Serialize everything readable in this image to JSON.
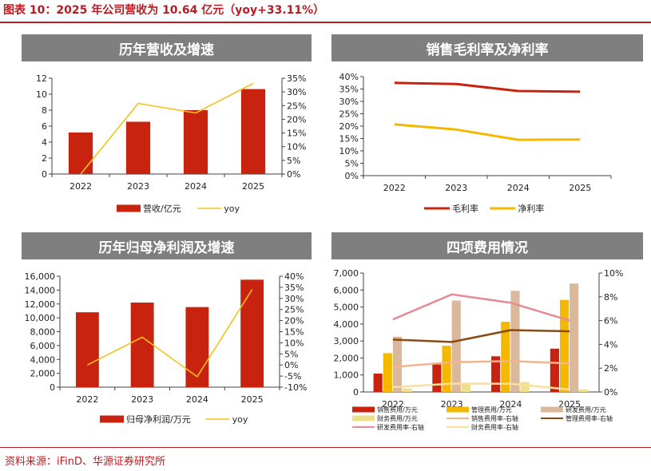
{
  "figure": {
    "title": "图表 10：2025 年公司营收为 10.64 亿元（yoy+33.11%）",
    "source": "资料来源：iFinD、华源证券研究所"
  },
  "panels": [
    {
      "title": "历年营收及增速"
    },
    {
      "title": "销售毛利率及净利率"
    },
    {
      "title": "历年归母净利润及增速"
    },
    {
      "title": "四项费用情况"
    }
  ],
  "chart_data": [
    {
      "type": "bar",
      "categories": [
        "2022",
        "2023",
        "2024",
        "2025"
      ],
      "series": [
        {
          "name": "营收/亿元",
          "type": "bar",
          "axis": "left",
          "color": "#c8230e",
          "values": [
            5.2,
            6.55,
            8.0,
            10.64
          ]
        },
        {
          "name": "yoy",
          "type": "line",
          "axis": "right",
          "color": "#f2c21b",
          "values": [
            0.0,
            25.8,
            22.3,
            33.11
          ]
        }
      ],
      "ylim": [
        0,
        12
      ],
      "yticks": [
        0,
        2,
        4,
        6,
        8,
        10,
        12
      ],
      "y2lim": [
        0,
        35
      ],
      "y2ticks": [
        0,
        5,
        10,
        15,
        20,
        25,
        30,
        35
      ],
      "y2suffix": "%",
      "legend": "bottom"
    },
    {
      "type": "line",
      "categories": [
        "2022",
        "2023",
        "2024",
        "2025"
      ],
      "series": [
        {
          "name": "毛利率",
          "color": "#c8230e",
          "values": [
            37.5,
            37.0,
            34.2,
            33.9
          ]
        },
        {
          "name": "净利率",
          "color": "#f5b800",
          "values": [
            20.7,
            18.6,
            14.5,
            14.6
          ]
        }
      ],
      "ylim": [
        0,
        40
      ],
      "yticks": [
        0,
        5,
        10,
        15,
        20,
        25,
        30,
        35,
        40
      ],
      "ysuffix": "%",
      "legend": "bottom"
    },
    {
      "type": "bar",
      "categories": [
        "2022",
        "2023",
        "2024",
        "2025"
      ],
      "series": [
        {
          "name": "归母净利润/万元",
          "type": "bar",
          "axis": "left",
          "color": "#c8230e",
          "values": [
            10800,
            12200,
            11550,
            15500
          ]
        },
        {
          "name": "yoy",
          "type": "line",
          "axis": "right",
          "color": "#f2c21b",
          "values": [
            0,
            12.5,
            -5.3,
            34.0
          ]
        }
      ],
      "ylim": [
        0,
        16000
      ],
      "yticks": [
        0,
        2000,
        4000,
        6000,
        8000,
        10000,
        12000,
        14000,
        16000
      ],
      "ytick_labels": [
        "0",
        "2,000",
        "4,000",
        "6,000",
        "8,000",
        "10,000",
        "12,000",
        "14,000",
        "16,000"
      ],
      "y2lim": [
        -10,
        40
      ],
      "y2ticks": [
        -10,
        -5,
        0,
        5,
        10,
        15,
        20,
        25,
        30,
        35,
        40
      ],
      "y2suffix": "%",
      "legend": "bottom"
    },
    {
      "type": "bar",
      "categories": [
        "2022",
        "2023",
        "2024",
        "2025"
      ],
      "series": [
        {
          "name": "销售费用/万元",
          "type": "bar",
          "axis": "left",
          "color": "#c8230e",
          "values": [
            1080,
            1620,
            2100,
            2550
          ]
        },
        {
          "name": "管理费用/万元",
          "type": "bar",
          "axis": "left",
          "color": "#f5b800",
          "values": [
            2280,
            2720,
            4130,
            5420
          ]
        },
        {
          "name": "研发费用/万元",
          "type": "bar",
          "axis": "left",
          "color": "#d9b89c",
          "values": [
            3250,
            5380,
            5950,
            6380
          ]
        },
        {
          "name": "财务费用/万元",
          "type": "bar",
          "axis": "left",
          "color": "#ede08c",
          "values": [
            200,
            450,
            580,
            150
          ]
        },
        {
          "name": "销售费用率-右轴",
          "type": "line",
          "axis": "right",
          "color": "#f2b58f",
          "values": [
            2.1,
            2.5,
            2.6,
            2.4
          ]
        },
        {
          "name": "管理费用率-右轴",
          "type": "line",
          "axis": "right",
          "color": "#8a4a12",
          "values": [
            4.4,
            4.2,
            5.2,
            5.1
          ]
        },
        {
          "name": "研发费用率-右轴",
          "type": "line",
          "axis": "right",
          "color": "#e58b95",
          "values": [
            6.1,
            8.2,
            7.5,
            6.0
          ]
        },
        {
          "name": "财务费用率-右轴",
          "type": "line",
          "axis": "right",
          "color": "#f8dfa0",
          "values": [
            0.4,
            0.7,
            0.7,
            0.2
          ]
        }
      ],
      "ylim": [
        0,
        7000
      ],
      "yticks": [
        0,
        1000,
        2000,
        3000,
        4000,
        5000,
        6000,
        7000
      ],
      "ytick_labels": [
        "0",
        "1,000",
        "2,000",
        "3,000",
        "4,000",
        "5,000",
        "6,000",
        "7,000"
      ],
      "y2lim": [
        0,
        10
      ],
      "y2ticks": [
        0,
        2,
        4,
        6,
        8,
        10
      ],
      "y2suffix": "%",
      "legend": "bottom"
    }
  ]
}
